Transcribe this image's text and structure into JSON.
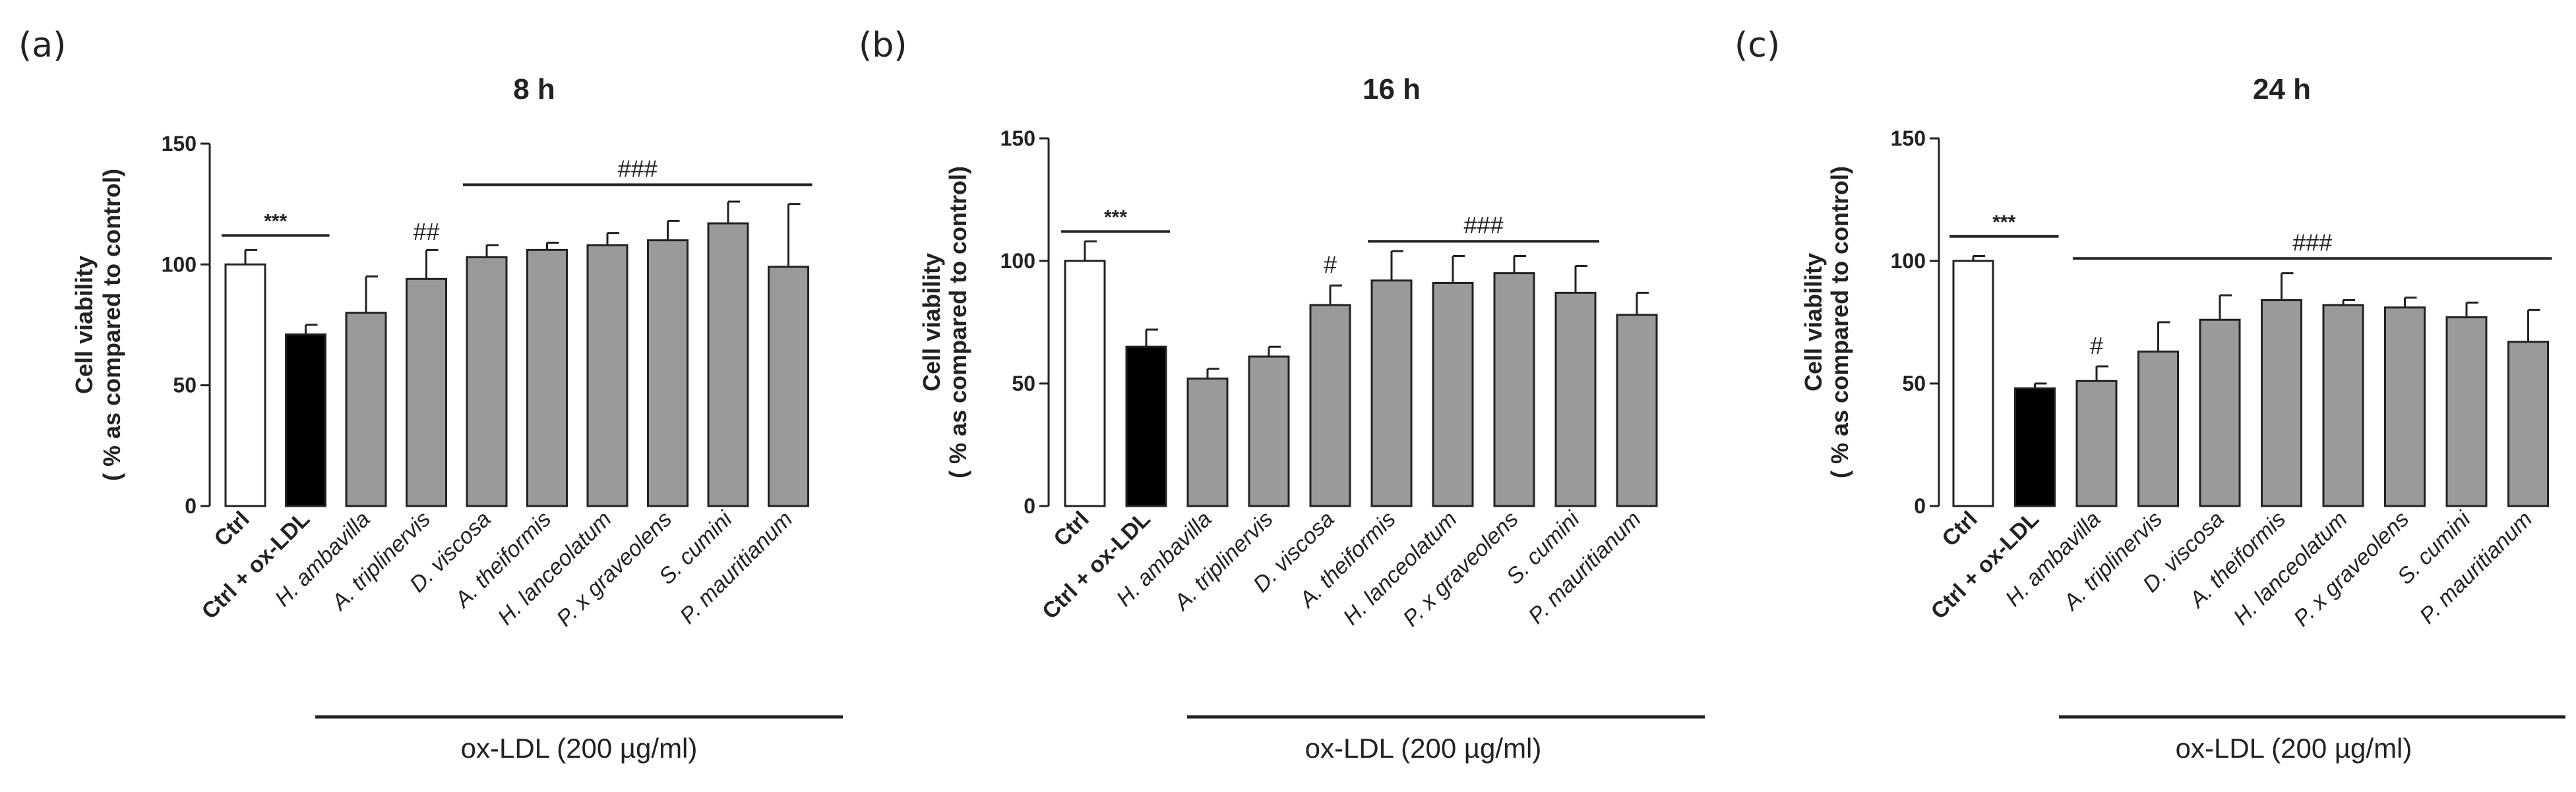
{
  "figure": {
    "treatment_label": "ox-LDL (200 µg/ml)"
  },
  "chart_data": [
    {
      "type": "bar",
      "panel": "(a)",
      "title": "8 h",
      "ylabel_line1": "Cell viability",
      "ylabel_line2": "( % as compared to control)",
      "ylim": [
        0,
        150
      ],
      "yticks": [
        "0",
        "50",
        "100",
        "150"
      ],
      "categories": [
        "Ctrl",
        "Ctrl + ox-LDL",
        "H. ambavilla",
        "A. triplinervis",
        "D. viscosa",
        "A. theiformis",
        "H. lanceolatum",
        "P. x graveolens",
        "S. cumini",
        "P. mauritianum"
      ],
      "values": [
        100,
        71,
        80,
        94,
        103,
        106,
        108,
        110,
        117,
        99
      ],
      "errors": [
        6,
        4,
        15,
        12,
        5,
        3,
        5,
        8,
        9,
        26
      ],
      "significance": [
        {
          "label": "***",
          "from": 0,
          "to": 1,
          "y": 112
        },
        {
          "label": "##",
          "at": 3,
          "y": 108
        },
        {
          "label": "###",
          "from": 4,
          "to": 9,
          "y": 133
        }
      ]
    },
    {
      "type": "bar",
      "panel": "(b)",
      "title": "16 h",
      "ylabel_line1": "Cell viability",
      "ylabel_line2": "( % as compared to control)",
      "ylim": [
        0,
        150
      ],
      "yticks": [
        "0",
        "50",
        "100",
        "150"
      ],
      "categories": [
        "Ctrl",
        "Ctrl + ox-LDL",
        "H. ambavilla",
        "A. triplinervis",
        "D. viscosa",
        "A. theiformis",
        "H. lanceolatum",
        "P. x graveolens",
        "S. cumini",
        "P. mauritianum"
      ],
      "values": [
        100,
        65,
        52,
        61,
        82,
        92,
        91,
        95,
        87,
        78
      ],
      "errors": [
        8,
        7,
        4,
        4,
        8,
        12,
        11,
        7,
        11,
        9
      ],
      "significance": [
        {
          "label": "***",
          "from": 0,
          "to": 1,
          "y": 112
        },
        {
          "label": "#",
          "at": 4,
          "y": 93
        },
        {
          "label": "###",
          "from": 5,
          "to": 8,
          "y": 108
        }
      ]
    },
    {
      "type": "bar",
      "panel": "(c)",
      "title": "24 h",
      "ylabel_line1": "Cell viability",
      "ylabel_line2": "( % as compared to control)",
      "ylim": [
        0,
        150
      ],
      "yticks": [
        "0",
        "50",
        "100",
        "150"
      ],
      "categories": [
        "Ctrl",
        "Ctrl + ox-LDL",
        "H. ambavilla",
        "A. triplinervis",
        "D. viscosa",
        "A. theiformis",
        "H. lanceolatum",
        "P. x graveolens",
        "S. cumini",
        "P. mauritianum"
      ],
      "values": [
        100,
        48,
        51,
        63,
        76,
        84,
        82,
        81,
        77,
        67
      ],
      "errors": [
        2,
        2,
        6,
        12,
        10,
        11,
        2,
        4,
        6,
        13
      ],
      "significance": [
        {
          "label": "***",
          "from": 0,
          "to": 1,
          "y": 110
        },
        {
          "label": "#",
          "at": 2,
          "y": 60
        },
        {
          "label": "###",
          "from": 2,
          "to": 9,
          "y": 101
        }
      ]
    }
  ]
}
